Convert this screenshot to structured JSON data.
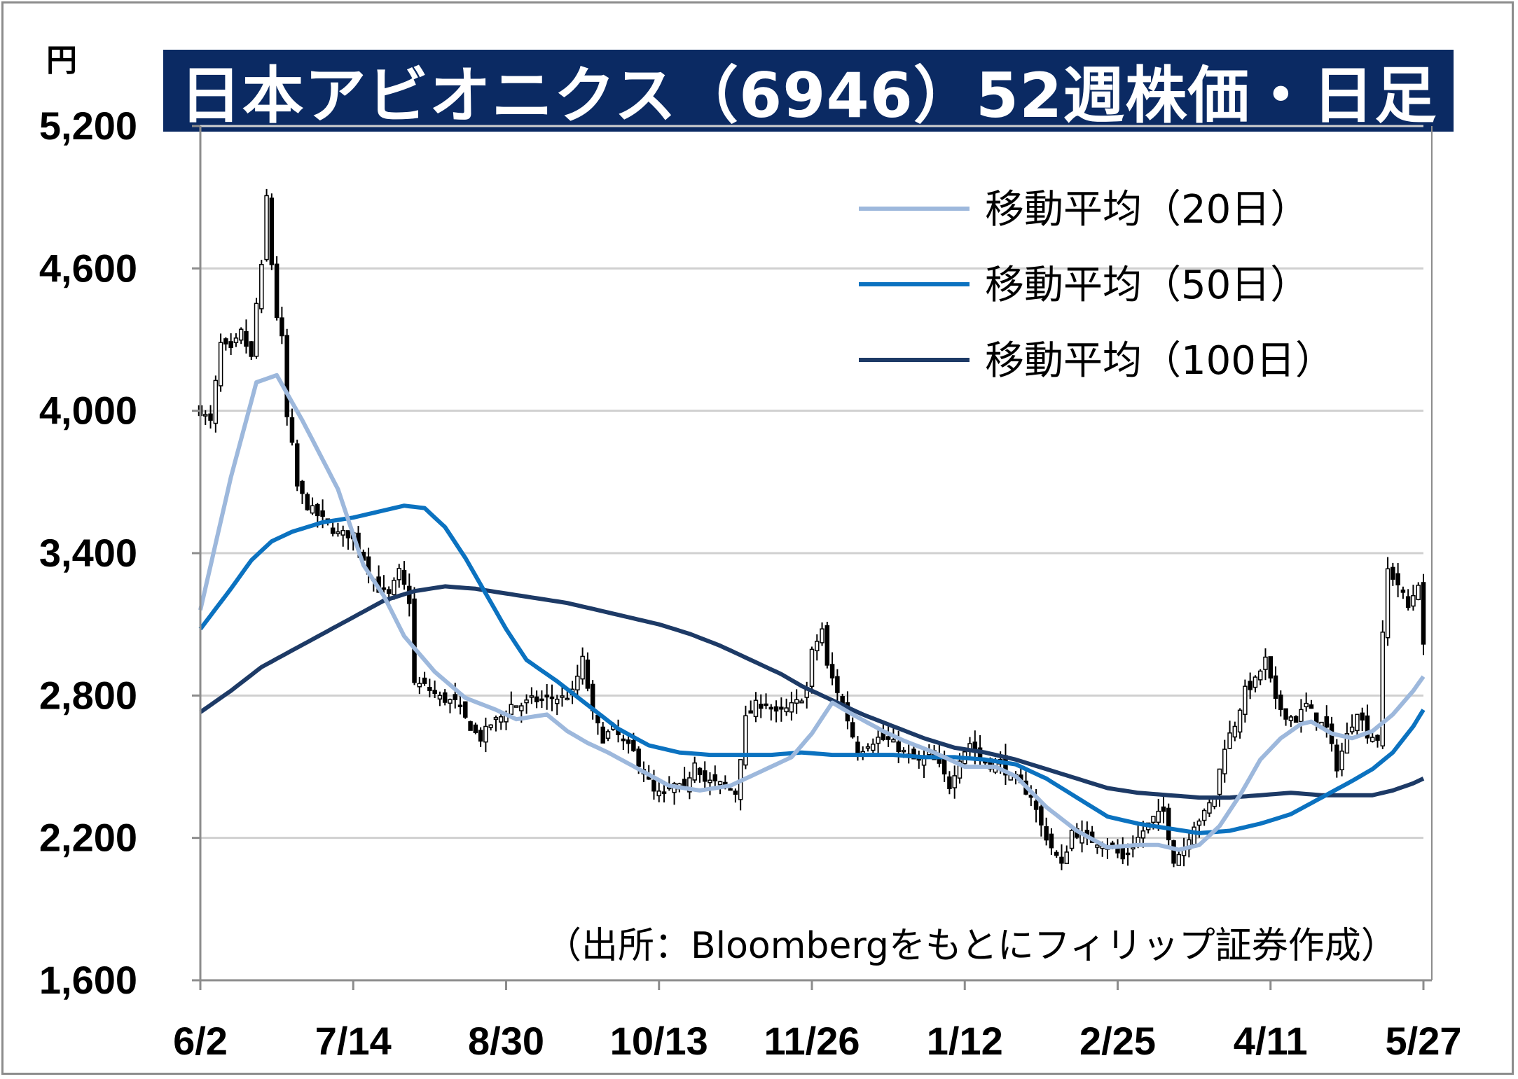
{
  "title": "日本アビオニクス（6946）52週株価・日足",
  "unit_label": "円",
  "source_note": "（出所：Bloombergをもとにフィリップ証券作成）",
  "colors": {
    "title_bg": "#0b2a63",
    "ma20": "#9db8dc",
    "ma50": "#0b72c0",
    "ma100": "#1d3a66",
    "candle": "#000000",
    "grid": "#d0d0d0"
  },
  "chart_data": {
    "type": "candlestick",
    "title": "日本アビオニクス（6946）52週株価・日足",
    "ylabel": "円",
    "ylim": [
      1600,
      5200
    ],
    "yticks": [
      "1,600",
      "2,200",
      "2,800",
      "3,400",
      "4,000",
      "4,600",
      "5,200"
    ],
    "ytick_values": [
      1600,
      2200,
      2800,
      3400,
      4000,
      4600,
      5200
    ],
    "xticks": [
      "6/2",
      "7/14",
      "8/30",
      "10/13",
      "11/26",
      "1/12",
      "2/25",
      "4/11",
      "5/27"
    ],
    "xtick_index": [
      0,
      30,
      60,
      90,
      120,
      150,
      180,
      210,
      240
    ],
    "n_days": 241,
    "legend": {
      "placement": "top-right",
      "entries": [
        {
          "label": "移動平均（20日）",
          "key": "ma20"
        },
        {
          "label": "移動平均（50日）",
          "key": "ma50"
        },
        {
          "label": "移動平均（100日）",
          "key": "ma100"
        }
      ]
    },
    "close_anchors": [
      [
        0,
        4000
      ],
      [
        2,
        3950
      ],
      [
        4,
        4280
      ],
      [
        6,
        4250
      ],
      [
        8,
        4330
      ],
      [
        10,
        4220
      ],
      [
        11,
        4450
      ],
      [
        12,
        4600
      ],
      [
        13,
        4900
      ],
      [
        14,
        4620
      ],
      [
        15,
        4400
      ],
      [
        16,
        4300
      ],
      [
        17,
        3970
      ],
      [
        18,
        3850
      ],
      [
        19,
        3680
      ],
      [
        21,
        3600
      ],
      [
        23,
        3560
      ],
      [
        25,
        3520
      ],
      [
        27,
        3480
      ],
      [
        29,
        3480
      ],
      [
        31,
        3430
      ],
      [
        33,
        3330
      ],
      [
        35,
        3250
      ],
      [
        37,
        3220
      ],
      [
        39,
        3320
      ],
      [
        40,
        3260
      ],
      [
        41,
        3200
      ],
      [
        42,
        2850
      ],
      [
        44,
        2840
      ],
      [
        47,
        2790
      ],
      [
        50,
        2770
      ],
      [
        52,
        2700
      ],
      [
        54,
        2640
      ],
      [
        55,
        2620
      ],
      [
        57,
        2680
      ],
      [
        59,
        2710
      ],
      [
        61,
        2760
      ],
      [
        63,
        2760
      ],
      [
        65,
        2780
      ],
      [
        67,
        2780
      ],
      [
        69,
        2790
      ],
      [
        71,
        2790
      ],
      [
        73,
        2810
      ],
      [
        75,
        2950
      ],
      [
        77,
        2720
      ],
      [
        79,
        2620
      ],
      [
        81,
        2660
      ],
      [
        83,
        2600
      ],
      [
        85,
        2560
      ],
      [
        87,
        2480
      ],
      [
        89,
        2390
      ],
      [
        91,
        2380
      ],
      [
        93,
        2420
      ],
      [
        95,
        2400
      ],
      [
        97,
        2530
      ],
      [
        99,
        2440
      ],
      [
        101,
        2430
      ],
      [
        103,
        2420
      ],
      [
        105,
        2390
      ],
      [
        107,
        2700
      ],
      [
        109,
        2760
      ],
      [
        111,
        2770
      ],
      [
        113,
        2720
      ],
      [
        115,
        2740
      ],
      [
        117,
        2770
      ],
      [
        119,
        2820
      ],
      [
        120,
        2980
      ],
      [
        122,
        3080
      ],
      [
        123,
        2920
      ],
      [
        125,
        2820
      ],
      [
        127,
        2700
      ],
      [
        129,
        2560
      ],
      [
        131,
        2600
      ],
      [
        133,
        2620
      ],
      [
        135,
        2610
      ],
      [
        137,
        2580
      ],
      [
        139,
        2540
      ],
      [
        141,
        2520
      ],
      [
        143,
        2550
      ],
      [
        145,
        2500
      ],
      [
        147,
        2420
      ],
      [
        149,
        2540
      ],
      [
        151,
        2600
      ],
      [
        153,
        2530
      ],
      [
        155,
        2510
      ],
      [
        157,
        2520
      ],
      [
        159,
        2450
      ],
      [
        161,
        2420
      ],
      [
        163,
        2380
      ],
      [
        165,
        2250
      ],
      [
        167,
        2160
      ],
      [
        169,
        2080
      ],
      [
        171,
        2230
      ],
      [
        173,
        2210
      ],
      [
        175,
        2190
      ],
      [
        177,
        2180
      ],
      [
        179,
        2160
      ],
      [
        181,
        2110
      ],
      [
        183,
        2170
      ],
      [
        185,
        2230
      ],
      [
        187,
        2280
      ],
      [
        189,
        2310
      ],
      [
        191,
        2110
      ],
      [
        193,
        2160
      ],
      [
        195,
        2260
      ],
      [
        197,
        2300
      ],
      [
        199,
        2380
      ],
      [
        201,
        2590
      ],
      [
        203,
        2680
      ],
      [
        205,
        2820
      ],
      [
        207,
        2860
      ],
      [
        209,
        2950
      ],
      [
        211,
        2770
      ],
      [
        213,
        2720
      ],
      [
        215,
        2700
      ],
      [
        217,
        2760
      ],
      [
        219,
        2700
      ],
      [
        221,
        2660
      ],
      [
        223,
        2500
      ],
      [
        225,
        2630
      ],
      [
        227,
        2740
      ],
      [
        229,
        2640
      ],
      [
        231,
        2620
      ],
      [
        232,
        3050
      ],
      [
        233,
        3330
      ],
      [
        235,
        3270
      ],
      [
        237,
        3170
      ],
      [
        239,
        3280
      ],
      [
        240,
        3000
      ]
    ],
    "ma_anchors": {
      "ma20": [
        [
          0,
          3160
        ],
        [
          6,
          3720
        ],
        [
          11,
          4120
        ],
        [
          15,
          4150
        ],
        [
          20,
          3960
        ],
        [
          27,
          3670
        ],
        [
          32,
          3350
        ],
        [
          36,
          3220
        ],
        [
          40,
          3050
        ],
        [
          46,
          2900
        ],
        [
          52,
          2790
        ],
        [
          58,
          2740
        ],
        [
          62,
          2700
        ],
        [
          68,
          2720
        ],
        [
          72,
          2650
        ],
        [
          76,
          2600
        ],
        [
          80,
          2560
        ],
        [
          86,
          2490
        ],
        [
          92,
          2420
        ],
        [
          98,
          2400
        ],
        [
          104,
          2420
        ],
        [
          110,
          2480
        ],
        [
          116,
          2540
        ],
        [
          120,
          2640
        ],
        [
          124,
          2770
        ],
        [
          128,
          2720
        ],
        [
          134,
          2650
        ],
        [
          138,
          2610
        ],
        [
          144,
          2560
        ],
        [
          150,
          2500
        ],
        [
          156,
          2500
        ],
        [
          160,
          2460
        ],
        [
          166,
          2330
        ],
        [
          172,
          2230
        ],
        [
          178,
          2160
        ],
        [
          184,
          2170
        ],
        [
          188,
          2170
        ],
        [
          192,
          2150
        ],
        [
          196,
          2170
        ],
        [
          200,
          2250
        ],
        [
          204,
          2380
        ],
        [
          208,
          2530
        ],
        [
          212,
          2620
        ],
        [
          216,
          2680
        ],
        [
          218,
          2690
        ],
        [
          222,
          2640
        ],
        [
          226,
          2620
        ],
        [
          230,
          2650
        ],
        [
          234,
          2720
        ],
        [
          238,
          2820
        ],
        [
          240,
          2880
        ]
      ],
      "ma50": [
        [
          0,
          3080
        ],
        [
          6,
          3250
        ],
        [
          10,
          3370
        ],
        [
          14,
          3450
        ],
        [
          18,
          3490
        ],
        [
          24,
          3530
        ],
        [
          30,
          3550
        ],
        [
          36,
          3580
        ],
        [
          40,
          3600
        ],
        [
          44,
          3590
        ],
        [
          48,
          3510
        ],
        [
          52,
          3380
        ],
        [
          56,
          3230
        ],
        [
          60,
          3080
        ],
        [
          64,
          2950
        ],
        [
          70,
          2860
        ],
        [
          76,
          2760
        ],
        [
          82,
          2660
        ],
        [
          88,
          2590
        ],
        [
          94,
          2560
        ],
        [
          100,
          2550
        ],
        [
          106,
          2550
        ],
        [
          112,
          2550
        ],
        [
          118,
          2560
        ],
        [
          124,
          2550
        ],
        [
          130,
          2550
        ],
        [
          136,
          2550
        ],
        [
          142,
          2540
        ],
        [
          148,
          2540
        ],
        [
          154,
          2530
        ],
        [
          160,
          2510
        ],
        [
          166,
          2450
        ],
        [
          172,
          2370
        ],
        [
          178,
          2290
        ],
        [
          184,
          2260
        ],
        [
          190,
          2240
        ],
        [
          196,
          2220
        ],
        [
          202,
          2230
        ],
        [
          208,
          2260
        ],
        [
          214,
          2300
        ],
        [
          220,
          2370
        ],
        [
          226,
          2440
        ],
        [
          230,
          2490
        ],
        [
          234,
          2560
        ],
        [
          238,
          2670
        ],
        [
          240,
          2740
        ]
      ],
      "ma100": [
        [
          0,
          2730
        ],
        [
          6,
          2820
        ],
        [
          12,
          2920
        ],
        [
          18,
          2990
        ],
        [
          24,
          3060
        ],
        [
          30,
          3130
        ],
        [
          36,
          3200
        ],
        [
          42,
          3240
        ],
        [
          48,
          3260
        ],
        [
          54,
          3250
        ],
        [
          60,
          3230
        ],
        [
          66,
          3210
        ],
        [
          72,
          3190
        ],
        [
          78,
          3160
        ],
        [
          84,
          3130
        ],
        [
          90,
          3100
        ],
        [
          96,
          3060
        ],
        [
          102,
          3010
        ],
        [
          108,
          2950
        ],
        [
          114,
          2890
        ],
        [
          118,
          2840
        ],
        [
          122,
          2800
        ],
        [
          126,
          2760
        ],
        [
          130,
          2720
        ],
        [
          136,
          2670
        ],
        [
          142,
          2620
        ],
        [
          148,
          2580
        ],
        [
          154,
          2560
        ],
        [
          160,
          2530
        ],
        [
          166,
          2490
        ],
        [
          172,
          2450
        ],
        [
          178,
          2410
        ],
        [
          184,
          2390
        ],
        [
          190,
          2380
        ],
        [
          196,
          2370
        ],
        [
          202,
          2370
        ],
        [
          208,
          2380
        ],
        [
          214,
          2390
        ],
        [
          220,
          2380
        ],
        [
          226,
          2380
        ],
        [
          230,
          2380
        ],
        [
          234,
          2400
        ],
        [
          238,
          2430
        ],
        [
          240,
          2450
        ]
      ]
    }
  }
}
